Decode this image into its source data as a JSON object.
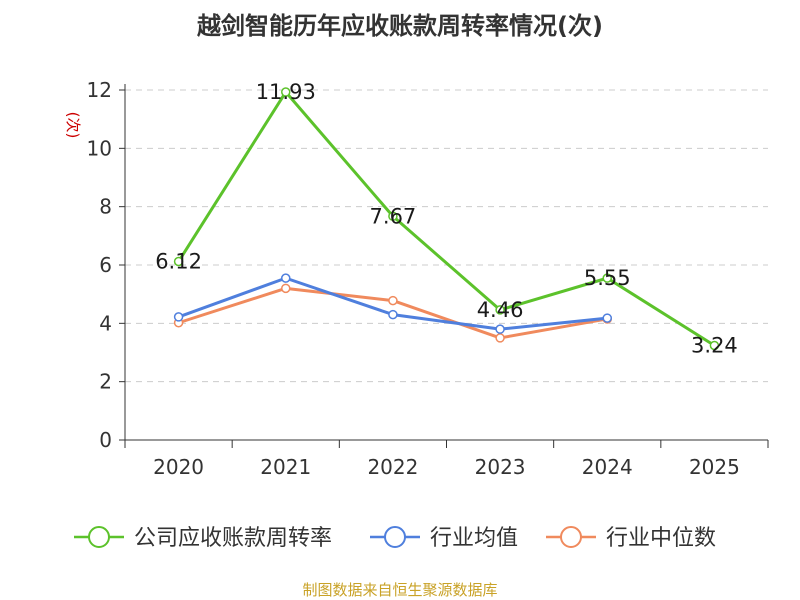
{
  "chart_data": {
    "type": "line",
    "title": "越剑智能历年应收账款周转率情况(次)",
    "ylabel": "(次)",
    "xlabel": "",
    "ylim": [
      0,
      12
    ],
    "yticks": [
      0,
      2,
      4,
      6,
      8,
      10,
      12
    ],
    "categories": [
      "2020",
      "2021",
      "2022",
      "2023",
      "2024",
      "2025"
    ],
    "grid": true,
    "legend_position": "bottom",
    "series": [
      {
        "name": "公司应收账款周转率",
        "color": "#5cc22b",
        "values": [
          6.12,
          11.93,
          7.67,
          4.46,
          5.55,
          3.24
        ],
        "labels": [
          "6.12",
          "11.93",
          "7.67",
          "4.46",
          "5.55",
          "3.24"
        ]
      },
      {
        "name": "行业均值",
        "color": "#4f7fdd",
        "values": [
          4.22,
          5.55,
          4.3,
          3.8,
          4.18,
          null
        ]
      },
      {
        "name": "行业中位数",
        "color": "#f08a5d",
        "values": [
          4.02,
          5.2,
          4.78,
          3.5,
          4.15,
          null
        ]
      }
    ]
  },
  "source": {
    "text": "制图数据来自恒生聚源数据库",
    "color": "#c9a227"
  },
  "colors": {
    "axis": "#333333",
    "grid": "#cccccc",
    "ylabel": "#cc0000"
  }
}
